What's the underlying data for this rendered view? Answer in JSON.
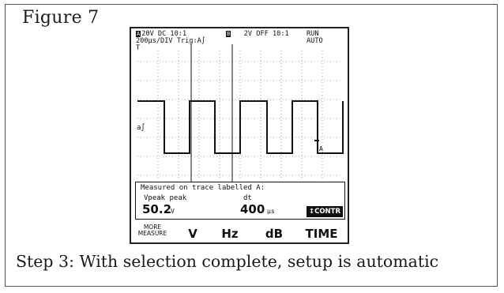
{
  "figure": {
    "label": "Figure 7"
  },
  "caption": "Step 3: With selection complete, setup is automatic",
  "scope": {
    "header": {
      "ch_a_badge": "A",
      "ch_a_settings": "20V DC 10:1",
      "ch_b_badge": "B",
      "ch_b_settings": "2V OFF 10:1",
      "run_state": "RUN",
      "timebase": "200µs/DIV Trig:A∫",
      "mode": "AUTO",
      "trigger_marker": "T"
    },
    "trace_label": "a∫",
    "cursor_label": "A",
    "measurement": {
      "title": "Measured on trace labelled A:",
      "label_1": "Vpeak peak",
      "value_1": "50.2",
      "unit_1": "V",
      "label_2": "dt",
      "value_2": "400",
      "unit_2": "µs",
      "contr_button": "↕CONTR"
    },
    "softkeys": {
      "more_measure_line1": "MORE",
      "more_measure_line2": "MEASURE",
      "volt": "V",
      "hertz": "Hz",
      "decibel": "dB",
      "time": "TIME"
    }
  }
}
